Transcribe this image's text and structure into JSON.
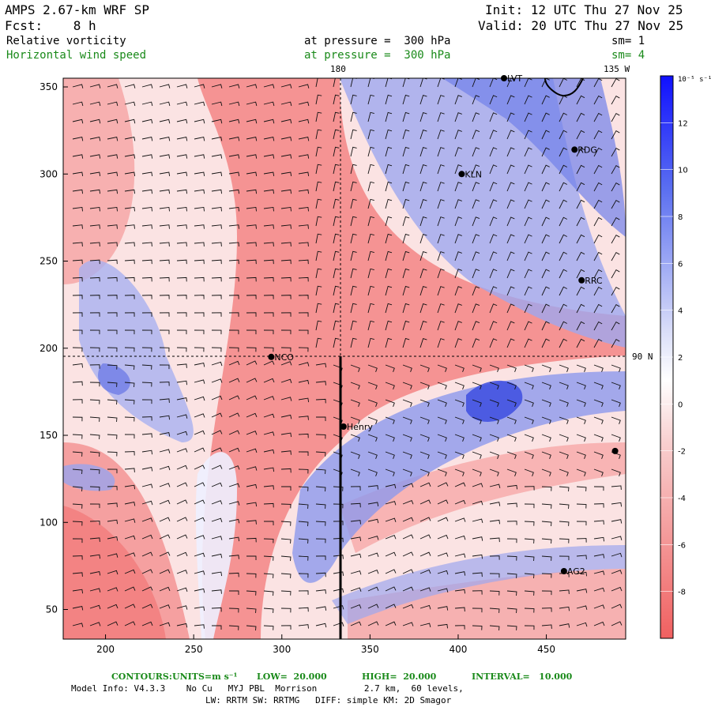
{
  "header": {
    "left_line1": "AMPS 2.67-km WRF SP",
    "left_line2": "Fcst:    8 h",
    "right_line1": "Init: 12 UTC Thu 27 Nov 25",
    "right_line2": "Valid: 20 UTC Thu 27 Nov 25",
    "field1_name": "Relative vorticity",
    "field1_level": "at pressure =  300 hPa",
    "field1_sm": "sm= 1",
    "field2_name": "Horizontal wind speed",
    "field2_level": "at pressure =  300 hPa",
    "field2_sm": "sm= 4"
  },
  "map_labels": {
    "lon_180": "180",
    "lon_135w": "135 W",
    "lat_90n": "90 N"
  },
  "colorbar": {
    "unit_label": "10⁻⁵ s⁻¹",
    "ticks": [
      "12",
      "10",
      "8",
      "6",
      "4",
      "2",
      "0",
      "-2",
      "-4",
      "-6",
      "-8"
    ],
    "tick_values": [
      12,
      10,
      8,
      6,
      4,
      2,
      0,
      -2,
      -4,
      -6,
      -8
    ],
    "range": [
      -10,
      14
    ],
    "colors": {
      "positive": "#1a1aff",
      "negative": "#f06060",
      "neutral": "#ffffff"
    }
  },
  "stations": [
    {
      "name": "LVT",
      "x": 426,
      "y": 355
    },
    {
      "name": "RDG",
      "x": 466,
      "y": 314
    },
    {
      "name": "KLN",
      "x": 402,
      "y": 300
    },
    {
      "name": "RRC",
      "x": 470,
      "y": 239
    },
    {
      "name": "NCO",
      "x": 294,
      "y": 195
    },
    {
      "name": "Henry",
      "x": 335,
      "y": 155
    },
    {
      "name": "",
      "x": 489,
      "y": 141
    },
    {
      "name": "AG2",
      "x": 460,
      "y": 72
    }
  ],
  "footer": {
    "contours_label": "CONTOURS:",
    "units_label": "UNITS=m s⁻¹",
    "low_label": "LOW=  20.000",
    "high_label": "HIGH=  20.000",
    "interval_label": "INTERVAL=   10.000",
    "model_line": "Model Info: V4.3.3    No Cu   MYJ PBL  Morrison         2.7 km,  60 levels,",
    "physics_line": "LW: RRTM SW: RRTMG   DIFF: simple KM: 2D Smagor"
  },
  "chart_data": {
    "type": "heatmap",
    "title": "Relative vorticity / Horizontal wind speed at 300 hPa",
    "x_ticks": [
      200,
      250,
      300,
      350,
      400,
      450
    ],
    "y_ticks": [
      50,
      100,
      150,
      200,
      250,
      300,
      350
    ],
    "xlim": [
      176,
      495
    ],
    "ylim": [
      33,
      355
    ],
    "cross_section_line": {
      "x": 335,
      "y_from": 33,
      "y_to": 195
    },
    "meridian_180_x": 335,
    "parallel_90n_y": 195
  }
}
